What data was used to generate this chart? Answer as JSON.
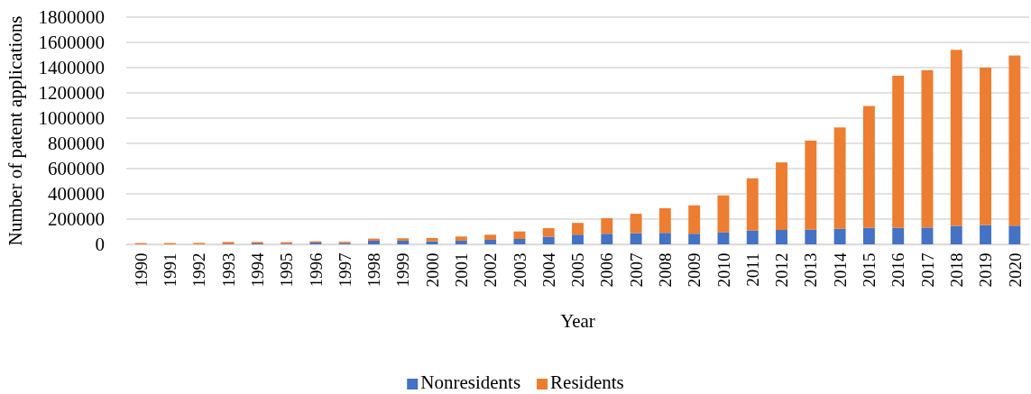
{
  "chart_data": {
    "type": "bar",
    "stacked": true,
    "xlabel": "Year",
    "ylabel": "Number of patent applications",
    "categories": [
      "1990",
      "1991",
      "1992",
      "1993",
      "1994",
      "1995",
      "1996",
      "1997",
      "1998",
      "1999",
      "2000",
      "2001",
      "2002",
      "2003",
      "2004",
      "2005",
      "2006",
      "2007",
      "2008",
      "2009",
      "2010",
      "2011",
      "2012",
      "2013",
      "2014",
      "2015",
      "2016",
      "2017",
      "2018",
      "2019",
      "2020"
    ],
    "series": [
      {
        "name": "Nonresidents",
        "color": "#4472c4",
        "values": [
          null,
          null,
          null,
          5000,
          7000,
          5000,
          14000,
          10000,
          29000,
          29000,
          24000,
          29000,
          36000,
          43000,
          60000,
          77000,
          84000,
          89000,
          91000,
          84000,
          94000,
          109000,
          114000,
          116000,
          123000,
          131000,
          131000,
          133000,
          146000,
          153000,
          148000
        ]
      },
      {
        "name": "Residents",
        "color": "#ed7d31",
        "values": [
          10000,
          10000,
          11000,
          14000,
          12000,
          12000,
          10000,
          11000,
          16000,
          19000,
          26000,
          33000,
          40000,
          59000,
          68000,
          93000,
          123000,
          153000,
          195000,
          225000,
          294000,
          414000,
          535000,
          706000,
          803000,
          965000,
          1205000,
          1247000,
          1395000,
          1247000,
          1348000
        ]
      }
    ],
    "ylim": [
      0,
      1800000
    ],
    "yticks": [
      0,
      200000,
      400000,
      600000,
      800000,
      1000000,
      1200000,
      1400000,
      1600000,
      1800000
    ],
    "grid": "y",
    "legend": "bottom"
  }
}
